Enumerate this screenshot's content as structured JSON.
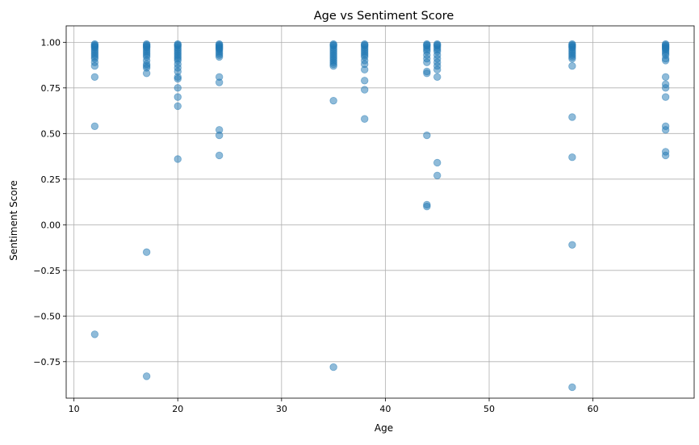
{
  "chart_data": {
    "type": "scatter",
    "title": "Age vs Sentiment Score",
    "xlabel": "Age",
    "ylabel": "Sentiment Score",
    "xlim": [
      9.25,
      69.75
    ],
    "ylim": [
      -0.95,
      1.09
    ],
    "xticks": [
      10,
      20,
      30,
      40,
      50,
      60
    ],
    "xtick_labels": [
      "10",
      "20",
      "30",
      "40",
      "50",
      "60"
    ],
    "yticks": [
      -0.75,
      -0.5,
      -0.25,
      0.0,
      0.25,
      0.5,
      0.75,
      1.0
    ],
    "ytick_labels": [
      "−0.75",
      "−0.50",
      "−0.25",
      "0.00",
      "0.25",
      "0.50",
      "0.75",
      "1.00"
    ],
    "grid": true,
    "marker_color": "#1f77b4",
    "marker_alpha": 0.5,
    "series": [
      {
        "x": [
          12,
          12,
          12,
          12,
          12,
          12,
          12,
          12,
          12,
          12,
          12,
          12,
          12,
          12,
          12,
          12,
          17,
          17,
          17,
          17,
          17,
          17,
          17,
          17,
          17,
          17,
          17,
          17,
          17,
          17,
          17,
          17,
          17,
          20,
          20,
          20,
          20,
          20,
          20,
          20,
          20,
          20,
          20,
          20,
          20,
          20,
          20,
          20,
          20,
          20,
          20,
          20,
          20,
          24,
          24,
          24,
          24,
          24,
          24,
          24,
          24,
          24,
          24,
          24,
          24,
          24,
          24,
          24,
          24,
          35,
          35,
          35,
          35,
          35,
          35,
          35,
          35,
          35,
          35,
          35,
          35,
          35,
          35,
          35,
          35,
          38,
          38,
          38,
          38,
          38,
          38,
          38,
          38,
          38,
          38,
          38,
          38,
          38,
          38,
          38,
          44,
          44,
          44,
          44,
          44,
          44,
          44,
          44,
          44,
          44,
          44,
          44,
          44,
          44,
          45,
          45,
          45,
          45,
          45,
          45,
          45,
          45,
          45,
          45,
          45,
          45,
          45,
          45,
          58,
          58,
          58,
          58,
          58,
          58,
          58,
          58,
          58,
          58,
          58,
          58,
          58,
          58,
          58,
          58,
          67,
          67,
          67,
          67,
          67,
          67,
          67,
          67,
          67,
          67,
          67,
          67,
          67,
          67,
          67,
          67,
          67,
          67,
          67,
          67
        ],
        "y": [
          0.99,
          0.98,
          0.97,
          0.96,
          0.95,
          0.94,
          0.93,
          0.92,
          0.91,
          0.89,
          0.87,
          0.81,
          0.54,
          -0.6,
          0.985,
          0.975,
          0.99,
          0.985,
          0.98,
          0.97,
          0.96,
          0.95,
          0.94,
          0.93,
          0.92,
          0.9,
          0.88,
          0.87,
          0.86,
          0.83,
          -0.15,
          -0.83,
          0.975,
          0.99,
          0.985,
          0.98,
          0.97,
          0.96,
          0.95,
          0.94,
          0.93,
          0.92,
          0.91,
          0.9,
          0.88,
          0.86,
          0.84,
          0.81,
          0.8,
          0.75,
          0.7,
          0.65,
          0.36,
          0.99,
          0.985,
          0.98,
          0.97,
          0.96,
          0.95,
          0.94,
          0.93,
          0.92,
          0.81,
          0.78,
          0.52,
          0.49,
          0.38,
          0.975,
          0.965,
          0.99,
          0.985,
          0.98,
          0.97,
          0.96,
          0.95,
          0.94,
          0.93,
          0.92,
          0.91,
          0.9,
          0.89,
          0.88,
          0.87,
          0.68,
          -0.78,
          0.99,
          0.985,
          0.98,
          0.97,
          0.96,
          0.95,
          0.94,
          0.93,
          0.92,
          0.9,
          0.88,
          0.85,
          0.79,
          0.74,
          0.58,
          0.99,
          0.98,
          0.97,
          0.96,
          0.95,
          0.93,
          0.91,
          0.89,
          0.84,
          0.83,
          0.49,
          0.11,
          0.1,
          0.985,
          0.99,
          0.98,
          0.97,
          0.96,
          0.95,
          0.93,
          0.91,
          0.89,
          0.87,
          0.85,
          0.81,
          0.34,
          0.27,
          0.985,
          0.99,
          0.985,
          0.98,
          0.97,
          0.96,
          0.95,
          0.94,
          0.93,
          0.92,
          0.91,
          0.87,
          0.59,
          0.37,
          -0.11,
          -0.89,
          0.975,
          0.99,
          0.985,
          0.98,
          0.97,
          0.96,
          0.95,
          0.94,
          0.93,
          0.91,
          0.9,
          0.81,
          0.77,
          0.75,
          0.7,
          0.54,
          0.52,
          0.4,
          0.38,
          0.975,
          0.965
        ]
      }
    ]
  }
}
